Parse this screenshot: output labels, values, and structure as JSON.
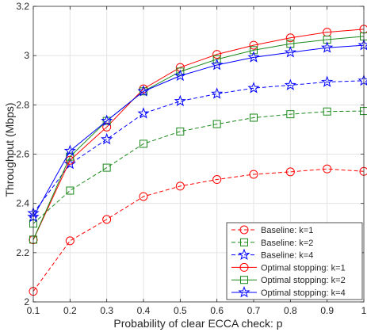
{
  "chart_data": {
    "type": "line",
    "title": "",
    "xlabel": "Probability of clear ECCA check: p",
    "ylabel": "Throughput (Mbps)",
    "xlim": [
      0.1,
      1
    ],
    "ylim": [
      2,
      3.2
    ],
    "grid": true,
    "legend_placement": "bottom-right",
    "x": [
      0.1,
      0.2,
      0.3,
      0.4,
      0.5,
      0.6,
      0.7,
      0.8,
      0.9,
      1
    ],
    "x_tick_labels": [
      "0.1",
      "0.2",
      "0.3",
      "0.4",
      "0.5",
      "0.6",
      "0.7",
      "0.8",
      "0.9",
      "1"
    ],
    "y_ticks": [
      2,
      2.2,
      2.4,
      2.6,
      2.8,
      3,
      3.2
    ],
    "y_tick_labels": [
      "2",
      "2.2",
      "2.4",
      "2.6",
      "2.8",
      "3",
      "3.2"
    ],
    "series": [
      {
        "name": "Baseline: k=1",
        "color": "#ff0000",
        "marker": "circle",
        "dash": true,
        "values": [
          2.043,
          2.248,
          2.335,
          2.428,
          2.47,
          2.497,
          2.518,
          2.528,
          2.54,
          2.53
        ]
      },
      {
        "name": "Baseline: k=2",
        "color": "#1a8a1a",
        "marker": "square",
        "dash": true,
        "values": [
          2.318,
          2.452,
          2.545,
          2.642,
          2.692,
          2.722,
          2.748,
          2.762,
          2.773,
          2.775
        ]
      },
      {
        "name": "Baseline: k=4",
        "color": "#0000ff",
        "marker": "star",
        "dash": true,
        "values": [
          2.36,
          2.56,
          2.66,
          2.765,
          2.815,
          2.845,
          2.868,
          2.88,
          2.893,
          2.898
        ]
      },
      {
        "name": "Optimal stopping: k=1",
        "color": "#ff0000",
        "marker": "circle",
        "dash": false,
        "values": [
          2.252,
          2.575,
          2.71,
          2.865,
          2.952,
          3.005,
          3.042,
          3.072,
          3.095,
          3.107
        ]
      },
      {
        "name": "Optimal stopping: k=2",
        "color": "#1a8a1a",
        "marker": "square",
        "dash": false,
        "values": [
          2.253,
          2.59,
          2.735,
          2.855,
          2.935,
          2.985,
          3.022,
          3.048,
          3.065,
          3.078
        ]
      },
      {
        "name": "Optimal stopping: k=4",
        "color": "#0000ff",
        "marker": "star",
        "dash": false,
        "values": [
          2.345,
          2.613,
          2.735,
          2.855,
          2.918,
          2.962,
          2.993,
          3.013,
          3.032,
          3.042
        ]
      }
    ]
  }
}
